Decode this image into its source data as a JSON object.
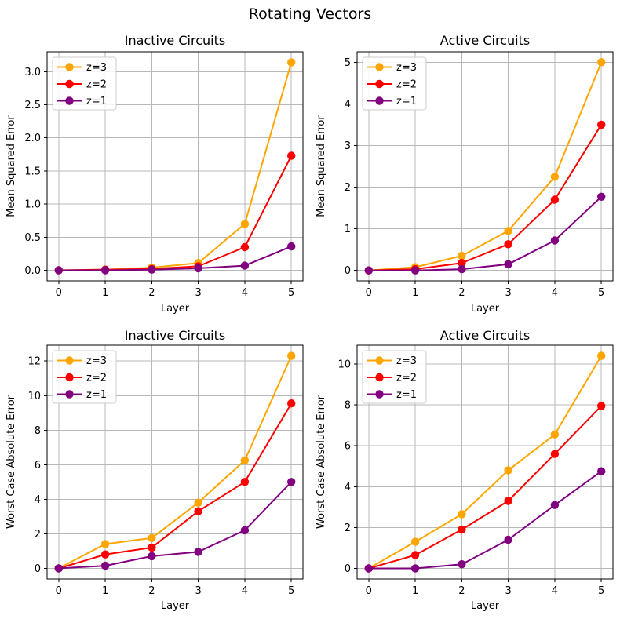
{
  "figure": {
    "suptitle": "Rotating Vectors",
    "background": "#ffffff"
  },
  "colors": {
    "text": "#000000",
    "grid": "#b8b8b8",
    "spine": "#000000",
    "legend_border": "#cccccc",
    "legend_fill": "#ffffff",
    "z3": "#ffa500",
    "z2": "#ff0000",
    "z1": "#800080"
  },
  "chart_data": [
    {
      "id": "mse-inactive",
      "type": "line",
      "title": "Inactive Circuits",
      "xlabel": "Layer",
      "ylabel": "Mean Squared Error",
      "grid": true,
      "legend_position": "upper left",
      "legend_labels": [
        "z=3",
        "z=2",
        "z=1"
      ],
      "x": [
        0,
        1,
        2,
        3,
        4,
        5
      ],
      "xlim": [
        -0.25,
        5.25
      ],
      "ylim": [
        -0.16,
        3.3
      ],
      "xticks": [
        0,
        1,
        2,
        3,
        4,
        5
      ],
      "xtick_labels": [
        "0",
        "1",
        "2",
        "3",
        "4",
        "5"
      ],
      "yticks": [
        0.0,
        0.5,
        1.0,
        1.5,
        2.0,
        2.5,
        3.0
      ],
      "ytick_labels": [
        "0.0",
        "0.5",
        "1.0",
        "1.5",
        "2.0",
        "2.5",
        "3.0"
      ],
      "series": [
        {
          "name": "z=3",
          "color": "#ffa500",
          "values": [
            0.0,
            0.01,
            0.04,
            0.11,
            0.7,
            3.14
          ]
        },
        {
          "name": "z=2",
          "color": "#ff0000",
          "values": [
            0.0,
            0.01,
            0.02,
            0.06,
            0.35,
            1.73
          ]
        },
        {
          "name": "z=1",
          "color": "#800080",
          "values": [
            0.0,
            0.0,
            0.01,
            0.03,
            0.07,
            0.36
          ]
        }
      ]
    },
    {
      "id": "mse-active",
      "type": "line",
      "title": "Active Circuits",
      "xlabel": "Layer",
      "ylabel": "Mean Squared Error",
      "grid": true,
      "legend_position": "upper left",
      "legend_labels": [
        "z=3",
        "z=2",
        "z=1"
      ],
      "x": [
        0,
        1,
        2,
        3,
        4,
        5
      ],
      "xlim": [
        -0.25,
        5.25
      ],
      "ylim": [
        -0.25,
        5.25
      ],
      "xticks": [
        0,
        1,
        2,
        3,
        4,
        5
      ],
      "xtick_labels": [
        "0",
        "1",
        "2",
        "3",
        "4",
        "5"
      ],
      "yticks": [
        0,
        1,
        2,
        3,
        4,
        5
      ],
      "ytick_labels": [
        "0",
        "1",
        "2",
        "3",
        "4",
        "5"
      ],
      "series": [
        {
          "name": "z=3",
          "color": "#ffa500",
          "values": [
            0.0,
            0.08,
            0.35,
            0.95,
            2.25,
            5.0
          ]
        },
        {
          "name": "z=2",
          "color": "#ff0000",
          "values": [
            0.0,
            0.03,
            0.18,
            0.63,
            1.7,
            3.5
          ]
        },
        {
          "name": "z=1",
          "color": "#800080",
          "values": [
            0.0,
            0.0,
            0.03,
            0.15,
            0.72,
            1.77
          ]
        }
      ]
    },
    {
      "id": "wcae-inactive",
      "type": "line",
      "title": "Inactive Circuits",
      "xlabel": "Layer",
      "ylabel": "Worst Case Absolute Error",
      "grid": true,
      "legend_position": "upper left",
      "legend_labels": [
        "z=3",
        "z=2",
        "z=1"
      ],
      "x": [
        0,
        1,
        2,
        3,
        4,
        5
      ],
      "xlim": [
        -0.25,
        5.25
      ],
      "ylim": [
        -0.62,
        12.92
      ],
      "xticks": [
        0,
        1,
        2,
        3,
        4,
        5
      ],
      "xtick_labels": [
        "0",
        "1",
        "2",
        "3",
        "4",
        "5"
      ],
      "yticks": [
        0,
        2,
        4,
        6,
        8,
        10,
        12
      ],
      "ytick_labels": [
        "0",
        "2",
        "4",
        "6",
        "8",
        "10",
        "12"
      ],
      "series": [
        {
          "name": "z=3",
          "color": "#ffa500",
          "values": [
            0.0,
            1.4,
            1.75,
            3.8,
            6.25,
            12.3
          ]
        },
        {
          "name": "z=2",
          "color": "#ff0000",
          "values": [
            0.0,
            0.8,
            1.2,
            3.3,
            5.0,
            9.55
          ]
        },
        {
          "name": "z=1",
          "color": "#800080",
          "values": [
            0.0,
            0.15,
            0.7,
            0.95,
            2.2,
            5.0
          ]
        }
      ]
    },
    {
      "id": "wcae-active",
      "type": "line",
      "title": "Active Circuits",
      "xlabel": "Layer",
      "ylabel": "Worst Case Absolute Error",
      "grid": true,
      "legend_position": "upper left",
      "legend_labels": [
        "z=3",
        "z=2",
        "z=1"
      ],
      "x": [
        0,
        1,
        2,
        3,
        4,
        5
      ],
      "xlim": [
        -0.25,
        5.25
      ],
      "ylim": [
        -0.52,
        10.92
      ],
      "xticks": [
        0,
        1,
        2,
        3,
        4,
        5
      ],
      "xtick_labels": [
        "0",
        "1",
        "2",
        "3",
        "4",
        "5"
      ],
      "yticks": [
        0,
        2,
        4,
        6,
        8,
        10
      ],
      "ytick_labels": [
        "0",
        "2",
        "4",
        "6",
        "8",
        "10"
      ],
      "series": [
        {
          "name": "z=3",
          "color": "#ffa500",
          "values": [
            0.0,
            1.3,
            2.65,
            4.8,
            6.55,
            10.4
          ]
        },
        {
          "name": "z=2",
          "color": "#ff0000",
          "values": [
            0.0,
            0.65,
            1.9,
            3.3,
            5.6,
            7.95
          ]
        },
        {
          "name": "z=1",
          "color": "#800080",
          "values": [
            0.0,
            0.0,
            0.2,
            1.4,
            3.1,
            4.75
          ]
        }
      ]
    }
  ]
}
